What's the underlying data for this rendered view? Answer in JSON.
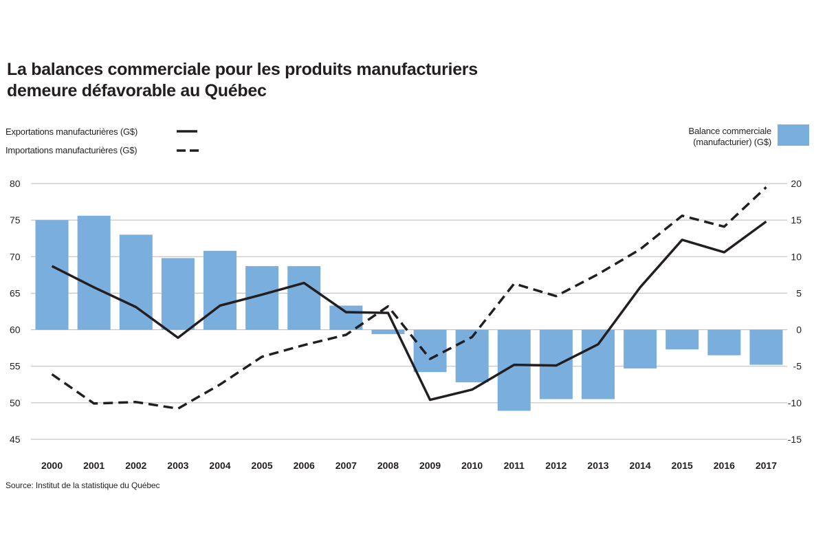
{
  "title": {
    "line1": "La balances commerciale pour les produits manufacturiers",
    "line2": "demeure défavorable au Québec"
  },
  "legend": {
    "exports": "Exportations manufacturières (G$)",
    "imports": "Importations manufacturières (G$)",
    "balance_line1": "Balance commerciale",
    "balance_line2": "(manufacturier) (G$)"
  },
  "source": "Source: Institut de la statistique du Québec",
  "colors": {
    "bars": "#7aaedc",
    "lines": "#231f20",
    "grid": "#b9b9b9"
  },
  "chart_data": {
    "type": "bar",
    "categories": [
      "2000",
      "2001",
      "2002",
      "2003",
      "2004",
      "2005",
      "2006",
      "2007",
      "2008",
      "2009",
      "2010",
      "2011",
      "2012",
      "2013",
      "2014",
      "2015",
      "2016",
      "2017"
    ],
    "left_axis": {
      "ylim": [
        45,
        80
      ],
      "ticks": [
        "80",
        "75",
        "70",
        "65",
        "60",
        "55",
        "50",
        "45"
      ]
    },
    "right_axis": {
      "ylim": [
        -15,
        20
      ],
      "ticks": [
        "20",
        "15",
        "10",
        "5",
        "0",
        "-5",
        "-10",
        "-15"
      ]
    },
    "grid": true,
    "series": [
      {
        "name": "Balance commerciale (manufacturier) (G$)",
        "type": "bar",
        "axis": "right",
        "values": [
          15,
          15.6,
          13,
          9.8,
          10.8,
          8.7,
          8.7,
          3.3,
          -0.6,
          -5.8,
          -7.2,
          -11.1,
          -9.5,
          -9.5,
          -5.3,
          -2.7,
          -3.5,
          -4.8
        ]
      },
      {
        "name": "Exportations manufacturières (G$)",
        "type": "line",
        "style": "solid",
        "axis": "left",
        "values": [
          68.7,
          65.8,
          63.1,
          58.9,
          63.3,
          64.8,
          66.4,
          62.4,
          62.3,
          50.4,
          51.8,
          55.2,
          55.1,
          58.0,
          65.8,
          72.3,
          70.6,
          74.8
        ]
      },
      {
        "name": "Importations manufacturières (G$)",
        "type": "line",
        "style": "dashed",
        "axis": "left",
        "values": [
          53.9,
          49.9,
          50.1,
          49.2,
          52.5,
          56.3,
          57.9,
          59.3,
          63.2,
          56.0,
          59.0,
          66.3,
          64.6,
          67.6,
          71.0,
          75.6,
          74.1,
          79.5
        ]
      }
    ]
  }
}
